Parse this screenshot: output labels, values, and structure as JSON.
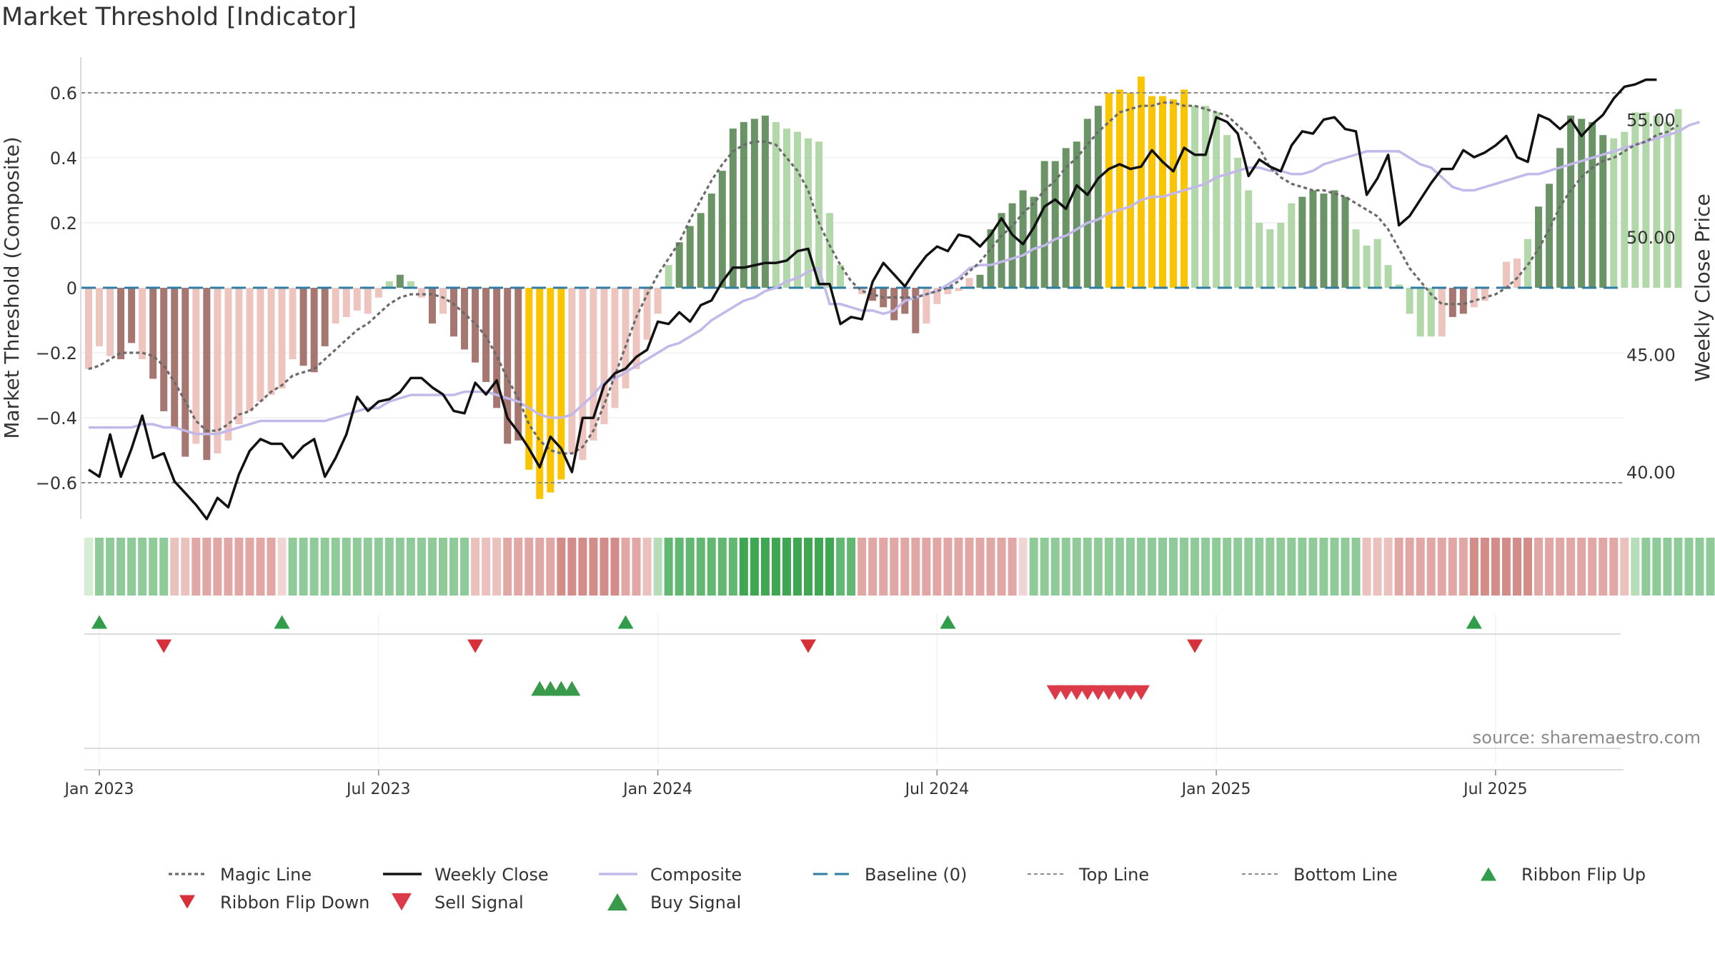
{
  "chart_data": {
    "type": "bar",
    "title": "Market Threshold [Indicator]",
    "ylabel_left": "Market Threshold (Composite)",
    "ylabel_right": "Weekly Close Price",
    "source": "source: sharemaestro.com",
    "ylim_left": [
      -0.72,
      0.72
    ],
    "ylim_right": [
      37.95,
      57.46
    ],
    "left_ticks": [
      {
        "value": 0.6,
        "label": "0.6"
      },
      {
        "value": 0.4,
        "label": "0.4"
      },
      {
        "value": 0.2,
        "label": "0.2"
      },
      {
        "value": 0,
        "label": "0"
      },
      {
        "value": -0.2,
        "label": "−0.2"
      },
      {
        "value": -0.4,
        "label": "−0.4"
      },
      {
        "value": -0.6,
        "label": "−0.6"
      }
    ],
    "right_ticks": [
      {
        "value": 55,
        "label": "55.00"
      },
      {
        "value": 50,
        "label": "50.00"
      },
      {
        "value": 45,
        "label": "45.00"
      },
      {
        "value": 40,
        "label": "40.00"
      }
    ],
    "x_ticks": [
      {
        "week": 1,
        "label": "Jan 2023"
      },
      {
        "week": 27,
        "label": "Jul 2023"
      },
      {
        "week": 53,
        "label": "Jan 2024"
      },
      {
        "week": 79,
        "label": "Jul 2024"
      },
      {
        "week": 105,
        "label": "Jan 2025"
      },
      {
        "week": 131,
        "label": "Jul 2025"
      }
    ],
    "top_line": 0.6,
    "bottom_line": -0.6,
    "baseline": 0,
    "composite_bars": [
      -0.25,
      -0.18,
      -0.21,
      -0.22,
      -0.17,
      -0.22,
      -0.28,
      -0.38,
      -0.43,
      -0.52,
      -0.48,
      -0.53,
      -0.51,
      -0.47,
      -0.42,
      -0.38,
      -0.35,
      -0.33,
      -0.31,
      -0.22,
      -0.24,
      -0.26,
      -0.18,
      -0.11,
      -0.09,
      -0.07,
      -0.08,
      -0.03,
      0.02,
      0.04,
      0.02,
      -0.03,
      -0.11,
      -0.08,
      -0.15,
      -0.19,
      -0.23,
      -0.29,
      -0.37,
      -0.48,
      -0.47,
      -0.56,
      -0.65,
      -0.63,
      -0.59,
      -0.51,
      -0.53,
      -0.47,
      -0.42,
      -0.37,
      -0.31,
      -0.25,
      -0.16,
      -0.08,
      0.07,
      0.14,
      0.19,
      0.23,
      0.29,
      0.36,
      0.49,
      0.51,
      0.52,
      0.53,
      0.51,
      0.49,
      0.48,
      0.46,
      0.45,
      0.23,
      0.07,
      0.0,
      -0.02,
      -0.04,
      -0.06,
      -0.1,
      -0.08,
      -0.14,
      -0.11,
      -0.05,
      -0.02,
      -0.01,
      0.03,
      0.04,
      0.18,
      0.23,
      0.26,
      0.3,
      0.28,
      0.39,
      0.39,
      0.43,
      0.45,
      0.52,
      0.56,
      0.6,
      0.61,
      0.6,
      0.65,
      0.59,
      0.59,
      0.58,
      0.61,
      0.56,
      0.56,
      0.54,
      0.47,
      0.4,
      0.3,
      0.2,
      0.18,
      0.2,
      0.26,
      0.28,
      0.3,
      0.29,
      0.3,
      0.28,
      0.18,
      0.13,
      0.15,
      0.07,
      0.01,
      -0.08,
      -0.15,
      -0.15,
      -0.15,
      -0.09,
      -0.08,
      -0.06,
      -0.04,
      0.0,
      0.08,
      0.09,
      0.15,
      0.25,
      0.32,
      0.43,
      0.53,
      0.52,
      0.51,
      0.47,
      0.46,
      0.48,
      0.54,
      0.54,
      0.53,
      0.51,
      0.55
    ],
    "bar_states": [
      "neg_light",
      "neg_light",
      "neg_light",
      "neg_dark",
      "neg_dark",
      "neg_light",
      "neg_dark",
      "neg_dark",
      "neg_dark",
      "neg_dark",
      "neg_light",
      "neg_dark",
      "neg_light",
      "neg_light",
      "neg_light",
      "neg_light",
      "neg_light",
      "neg_light",
      "neg_light",
      "neg_light",
      "neg_dark",
      "neg_dark",
      "neg_dark",
      "neg_light",
      "neg_light",
      "neg_light",
      "neg_light",
      "neg_light",
      "pos_light",
      "pos_dark",
      "pos_light",
      "neg_light",
      "neg_dark",
      "neg_light",
      "neg_dark",
      "neg_dark",
      "neg_dark",
      "neg_dark",
      "neg_dark",
      "neg_dark",
      "neg_dark",
      "yellow",
      "yellow",
      "yellow",
      "yellow",
      "neg_light",
      "neg_light",
      "neg_light",
      "neg_light",
      "neg_light",
      "neg_light",
      "neg_light",
      "neg_light",
      "neg_light",
      "pos_light",
      "pos_dark",
      "pos_dark",
      "pos_dark",
      "pos_dark",
      "pos_dark",
      "pos_dark",
      "pos_dark",
      "pos_dark",
      "pos_dark",
      "pos_light",
      "pos_light",
      "pos_light",
      "pos_light",
      "pos_light",
      "pos_light",
      "pos_light",
      "neg_light",
      "neg_light",
      "neg_dark",
      "neg_dark",
      "neg_dark",
      "neg_dark",
      "neg_dark",
      "neg_light",
      "neg_light",
      "neg_light",
      "neg_light",
      "neg_light",
      "pos_dark",
      "pos_dark",
      "pos_dark",
      "pos_dark",
      "pos_dark",
      "pos_dark",
      "pos_dark",
      "pos_dark",
      "pos_dark",
      "pos_dark",
      "pos_dark",
      "pos_dark",
      "yellow",
      "yellow",
      "yellow",
      "yellow",
      "yellow",
      "yellow",
      "yellow",
      "yellow",
      "pos_light",
      "pos_light",
      "pos_light",
      "pos_light",
      "pos_light",
      "pos_light",
      "pos_light",
      "pos_light",
      "pos_light",
      "pos_light",
      "pos_dark",
      "pos_dark",
      "pos_dark",
      "pos_dark",
      "pos_dark",
      "pos_light",
      "pos_light",
      "pos_light",
      "pos_light",
      "pos_light",
      "pos_light",
      "pos_light",
      "pos_light",
      "neg_light",
      "neg_dark",
      "neg_dark",
      "neg_light",
      "neg_light",
      "neg_light",
      "neg_light",
      "neg_light",
      "pos_light",
      "pos_dark",
      "pos_dark",
      "pos_dark",
      "pos_dark",
      "pos_dark",
      "pos_dark",
      "pos_dark",
      "pos_light",
      "pos_light",
      "pos_light",
      "pos_light",
      "pos_light",
      "pos_light",
      "pos_light",
      "pos_dark"
    ],
    "weekly_close": [
      40.1,
      39.8,
      41.6,
      39.8,
      41.0,
      42.4,
      40.6,
      40.8,
      39.6,
      39.1,
      38.6,
      38.0,
      38.9,
      38.5,
      39.9,
      40.9,
      41.4,
      41.2,
      41.2,
      40.6,
      41.1,
      41.4,
      39.8,
      40.6,
      41.6,
      43.2,
      42.6,
      43.0,
      43.1,
      43.4,
      44.0,
      44.0,
      43.6,
      43.3,
      42.6,
      42.5,
      43.8,
      43.3,
      43.9,
      42.3,
      41.7,
      41.0,
      40.2,
      41.5,
      41.0,
      40.0,
      42.3,
      42.3,
      43.7,
      44.2,
      44.4,
      44.9,
      45.2,
      46.4,
      46.3,
      46.8,
      46.4,
      47.1,
      47.3,
      48.1,
      48.7,
      48.7,
      48.8,
      48.9,
      48.9,
      49.0,
      49.4,
      49.5,
      48.0,
      48.0,
      46.3,
      46.6,
      46.5,
      48.1,
      48.9,
      48.4,
      47.9,
      48.6,
      49.2,
      49.6,
      49.4,
      50.1,
      50.0,
      49.6,
      50.1,
      50.8,
      50.1,
      49.7,
      50.4,
      51.3,
      51.6,
      51.2,
      52.2,
      51.8,
      52.5,
      52.9,
      53.1,
      52.9,
      53.0,
      53.7,
      53.2,
      52.8,
      53.8,
      53.5,
      53.5,
      55.1,
      54.9,
      54.4,
      52.6,
      53.3,
      53.0,
      52.8,
      53.9,
      54.5,
      54.4,
      55.0,
      55.1,
      54.6,
      54.5,
      51.8,
      52.5,
      53.5,
      50.5,
      50.9,
      51.6,
      52.3,
      52.9,
      52.9,
      53.7,
      53.4,
      53.6,
      53.9,
      54.3,
      53.4,
      53.2,
      55.2,
      55.0,
      54.6,
      55.0,
      54.3,
      54.8,
      55.2,
      55.9,
      56.4,
      56.5,
      56.7,
      56.7
    ],
    "composite_line": [
      -0.43,
      -0.43,
      -0.43,
      -0.43,
      -0.43,
      -0.42,
      -0.42,
      -0.43,
      -0.43,
      -0.44,
      -0.45,
      -0.45,
      -0.45,
      -0.44,
      -0.43,
      -0.42,
      -0.41,
      -0.41,
      -0.41,
      -0.41,
      -0.41,
      -0.41,
      -0.41,
      -0.4,
      -0.39,
      -0.38,
      -0.37,
      -0.37,
      -0.35,
      -0.34,
      -0.33,
      -0.33,
      -0.33,
      -0.33,
      -0.33,
      -0.32,
      -0.32,
      -0.32,
      -0.33,
      -0.34,
      -0.35,
      -0.37,
      -0.39,
      -0.4,
      -0.4,
      -0.39,
      -0.36,
      -0.33,
      -0.29,
      -0.28,
      -0.26,
      -0.24,
      -0.22,
      -0.2,
      -0.18,
      -0.17,
      -0.15,
      -0.13,
      -0.1,
      -0.08,
      -0.06,
      -0.04,
      -0.03,
      -0.01,
      0.0,
      0.02,
      0.03,
      0.05,
      0.06,
      -0.05,
      -0.05,
      -0.06,
      -0.07,
      -0.07,
      -0.08,
      -0.07,
      -0.04,
      -0.03,
      -0.02,
      -0.01,
      0.01,
      0.03,
      0.06,
      0.07,
      0.07,
      0.08,
      0.09,
      0.1,
      0.12,
      0.13,
      0.15,
      0.16,
      0.18,
      0.2,
      0.21,
      0.23,
      0.24,
      0.25,
      0.27,
      0.28,
      0.28,
      0.29,
      0.3,
      0.31,
      0.32,
      0.34,
      0.35,
      0.36,
      0.37,
      0.37,
      0.36,
      0.36,
      0.35,
      0.35,
      0.36,
      0.38,
      0.39,
      0.4,
      0.41,
      0.42,
      0.42,
      0.42,
      0.42,
      0.4,
      0.38,
      0.37,
      0.34,
      0.31,
      0.3,
      0.3,
      0.31,
      0.32,
      0.33,
      0.34,
      0.35,
      0.35,
      0.36,
      0.37,
      0.38,
      0.39,
      0.4,
      0.41,
      0.42,
      0.43,
      0.44,
      0.45,
      0.46,
      0.47,
      0.48,
      0.5,
      0.51
    ],
    "magic_line": [
      -0.25,
      -0.24,
      -0.22,
      -0.2,
      -0.2,
      -0.2,
      -0.21,
      -0.24,
      -0.29,
      -0.35,
      -0.41,
      -0.44,
      -0.44,
      -0.42,
      -0.39,
      -0.38,
      -0.35,
      -0.32,
      -0.3,
      -0.27,
      -0.26,
      -0.25,
      -0.22,
      -0.19,
      -0.16,
      -0.13,
      -0.11,
      -0.08,
      -0.05,
      -0.03,
      -0.02,
      -0.02,
      -0.02,
      -0.03,
      -0.05,
      -0.08,
      -0.11,
      -0.15,
      -0.21,
      -0.28,
      -0.34,
      -0.42,
      -0.47,
      -0.5,
      -0.51,
      -0.51,
      -0.49,
      -0.44,
      -0.36,
      -0.27,
      -0.18,
      -0.09,
      -0.02,
      0.04,
      0.09,
      0.14,
      0.21,
      0.27,
      0.33,
      0.38,
      0.42,
      0.44,
      0.45,
      0.45,
      0.44,
      0.4,
      0.36,
      0.3,
      0.2,
      0.13,
      0.07,
      0.02,
      -0.01,
      -0.02,
      -0.03,
      -0.03,
      -0.03,
      -0.03,
      -0.02,
      -0.01,
      0.0,
      0.02,
      0.05,
      0.08,
      0.12,
      0.16,
      0.19,
      0.23,
      0.26,
      0.3,
      0.33,
      0.37,
      0.4,
      0.44,
      0.48,
      0.51,
      0.54,
      0.55,
      0.56,
      0.56,
      0.57,
      0.57,
      0.56,
      0.56,
      0.55,
      0.54,
      0.53,
      0.5,
      0.47,
      0.43,
      0.37,
      0.34,
      0.32,
      0.31,
      0.3,
      0.3,
      0.29,
      0.28,
      0.26,
      0.24,
      0.22,
      0.18,
      0.12,
      0.06,
      0.02,
      -0.02,
      -0.05,
      -0.05,
      -0.05,
      -0.04,
      -0.03,
      -0.02,
      0.0,
      0.03,
      0.07,
      0.12,
      0.18,
      0.25,
      0.3,
      0.34,
      0.37,
      0.39,
      0.4,
      0.42,
      0.44,
      0.45,
      0.47,
      0.48,
      0.5
    ],
    "ribbon_states": [
      1,
      3,
      3,
      3,
      3,
      3,
      3,
      3,
      -2,
      -2,
      -3,
      -3,
      -3,
      -3,
      -3,
      -3,
      -3,
      -3,
      -1,
      3,
      3,
      3,
      3,
      3,
      3,
      3,
      3,
      3,
      3,
      3,
      3,
      3,
      3,
      3,
      3,
      3,
      -2,
      -2,
      -2,
      -3,
      -3,
      -3,
      -3,
      -3,
      -4,
      -4,
      -4,
      -4,
      -4,
      -4,
      -3,
      -3,
      -2,
      2,
      4,
      4,
      4,
      4,
      4,
      4,
      4,
      5,
      5,
      5,
      5,
      5,
      5,
      5,
      5,
      5,
      4,
      4,
      -3,
      -3,
      -3,
      -3,
      -3,
      -3,
      -3,
      -3,
      -3,
      -3,
      -3,
      -3,
      -3,
      -3,
      -3,
      -1,
      3,
      3,
      3,
      3,
      3,
      3,
      3,
      3,
      3,
      3,
      3,
      3,
      3,
      3,
      3,
      3,
      3,
      3,
      3,
      3,
      3,
      3,
      3,
      3,
      3,
      3,
      3,
      3,
      3,
      3,
      3,
      -2,
      -2,
      -2,
      -3,
      -3,
      -3,
      -3,
      -3,
      -3,
      -3,
      -4,
      -4,
      -4,
      -4,
      -4,
      -4,
      -3,
      -3,
      -3,
      -3,
      -3,
      -3,
      -3,
      -3,
      -2,
      2,
      3,
      3,
      3,
      3,
      3,
      3,
      3,
      3,
      3,
      3,
      3,
      3,
      3,
      2
    ],
    "ribbon_flip_up": [
      1,
      18,
      50,
      80,
      129
    ],
    "ribbon_flip_down": [
      7,
      36,
      67,
      103
    ],
    "buy_signal": [
      42,
      43,
      44,
      45
    ],
    "sell_signal": [
      90,
      91,
      92,
      93,
      94,
      95,
      96,
      97,
      98
    ],
    "sell_signal_label": "Sell Signal",
    "buy_signal_label": "Buy Signal",
    "colors": {
      "pos_dark": "#6b9466",
      "pos_light": "#b2d8a9",
      "neg_dark": "#a67771",
      "neg_light": "#eec4bf",
      "yellow": "#fac400",
      "weekly_close": "#111111",
      "composite": "#c2b8ea",
      "magic": "#6a6a6a",
      "baseline": "#2f7ba1",
      "ref_lines": "#8a8a8a",
      "flip_up": "#2f9d4a",
      "flip_down": "#d6303a",
      "sell": "#dc3a48",
      "buy": "#3a9a4b"
    },
    "legend": [
      {
        "label": "Magic Line",
        "kind": "dotted",
        "color": "#6a6a6a"
      },
      {
        "label": "Weekly Close",
        "kind": "solid",
        "color": "#111111"
      },
      {
        "label": "Composite",
        "kind": "solid",
        "color": "#c2b8ea"
      },
      {
        "label": "Baseline (0)",
        "kind": "dashed",
        "color": "#2f7ba1"
      },
      {
        "label": "Top Line",
        "kind": "dashed_thin",
        "color": "#8a8a8a"
      },
      {
        "label": "Bottom Line",
        "kind": "dashed_thin",
        "color": "#8a8a8a"
      },
      {
        "label": "Ribbon Flip Up",
        "kind": "tri_up",
        "color": "#2f9d4a"
      },
      {
        "label": "Ribbon Flip Down",
        "kind": "tri_down",
        "color": "#d6303a"
      },
      {
        "label": "Sell Signal",
        "kind": "tri_down_big",
        "color": "#dc3a48"
      },
      {
        "label": "Buy Signal",
        "kind": "tri_up_big",
        "color": "#3a9a4b"
      }
    ]
  }
}
